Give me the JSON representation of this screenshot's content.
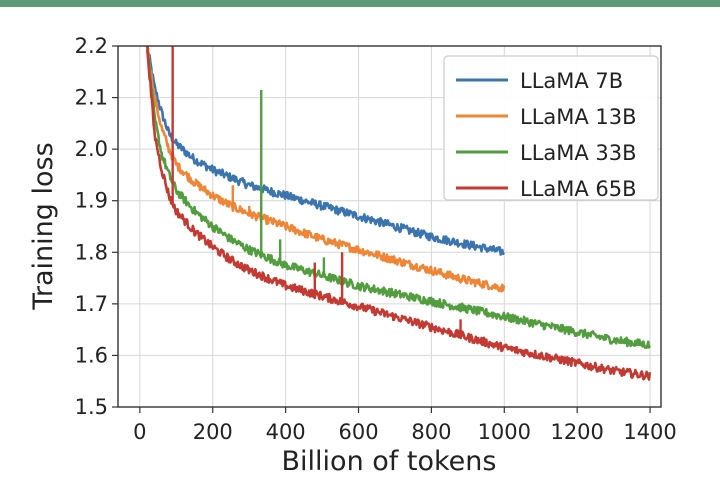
{
  "chart_data": {
    "type": "line",
    "title": "",
    "xlabel": "Billion of tokens",
    "ylabel": "Training loss",
    "xlim": [
      -60,
      1430
    ],
    "ylim": [
      1.5,
      2.2
    ],
    "xticks": [
      0,
      200,
      400,
      600,
      800,
      1000,
      1200,
      1400
    ],
    "yticks": [
      1.5,
      1.6,
      1.7,
      1.8,
      1.9,
      2.0,
      2.1,
      2.2
    ],
    "xtick_labels": [
      "0",
      "200",
      "400",
      "600",
      "800",
      "1000",
      "1200",
      "1400"
    ],
    "ytick_labels": [
      "1.5",
      "1.6",
      "1.7",
      "1.8",
      "1.9",
      "2.0",
      "2.1",
      "2.2"
    ],
    "grid": true,
    "legend_position": "top-right",
    "series": [
      {
        "name": "LLaMA 7B",
        "color": "#3b75af",
        "x": [
          20,
          40,
          60,
          80,
          100,
          150,
          200,
          250,
          300,
          400,
          500,
          600,
          700,
          800,
          900,
          1000
        ],
        "y": [
          2.2,
          2.12,
          2.07,
          2.03,
          2.01,
          1.98,
          1.96,
          1.945,
          1.93,
          1.91,
          1.89,
          1.87,
          1.85,
          1.83,
          1.815,
          1.8
        ],
        "spikes": []
      },
      {
        "name": "LLaMA 13B",
        "color": "#ef8636",
        "x": [
          20,
          40,
          60,
          80,
          100,
          150,
          200,
          250,
          300,
          400,
          500,
          600,
          700,
          800,
          900,
          1000
        ],
        "y": [
          2.2,
          2.1,
          2.04,
          2.0,
          1.97,
          1.935,
          1.91,
          1.89,
          1.875,
          1.85,
          1.825,
          1.805,
          1.785,
          1.765,
          1.745,
          1.73
        ],
        "spikes": [
          [
            255,
            1.93
          ],
          [
            300,
            1.89
          ]
        ]
      },
      {
        "name": "LLaMA 33B",
        "color": "#529e3e",
        "x": [
          20,
          40,
          60,
          80,
          100,
          150,
          200,
          250,
          300,
          400,
          500,
          600,
          700,
          800,
          900,
          1000,
          1100,
          1200,
          1300,
          1400
        ],
        "y": [
          2.2,
          2.06,
          1.99,
          1.95,
          1.92,
          1.88,
          1.85,
          1.825,
          1.805,
          1.775,
          1.755,
          1.735,
          1.72,
          1.705,
          1.69,
          1.675,
          1.66,
          1.645,
          1.63,
          1.62
        ],
        "spikes": [
          [
            333,
            2.115
          ],
          [
            385,
            1.825
          ],
          [
            505,
            1.79
          ]
        ]
      },
      {
        "name": "LLaMA 65B",
        "color": "#c43932",
        "x": [
          20,
          40,
          60,
          80,
          100,
          150,
          200,
          250,
          300,
          400,
          500,
          600,
          700,
          800,
          900,
          1000,
          1100,
          1200,
          1300,
          1400
        ],
        "y": [
          2.2,
          2.03,
          1.96,
          1.91,
          1.88,
          1.84,
          1.81,
          1.785,
          1.765,
          1.735,
          1.715,
          1.695,
          1.675,
          1.655,
          1.635,
          1.615,
          1.6,
          1.585,
          1.57,
          1.56
        ],
        "spikes": [
          [
            90,
            2.2
          ],
          [
            480,
            1.78
          ],
          [
            555,
            1.8
          ],
          [
            880,
            1.67
          ]
        ]
      }
    ]
  }
}
